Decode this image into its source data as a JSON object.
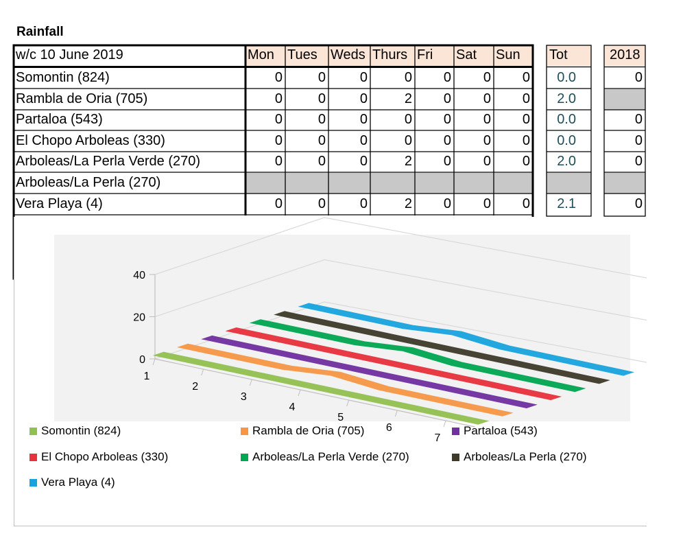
{
  "title": "Rainfall",
  "table": {
    "week_label": "w/c 10 June 2019",
    "day_headers": [
      "Mon",
      "Tues",
      "Weds",
      "Thurs",
      "Fri",
      "Sat",
      "Sun"
    ],
    "tot_header": "Tot",
    "prev_header": "2018",
    "rows": [
      {
        "station": "Somontin (824)",
        "days": [
          "0",
          "0",
          "0",
          "0",
          "0",
          "0",
          "0"
        ],
        "tot": "0.0",
        "prev": "0"
      },
      {
        "station": "Rambla de Oria (705)",
        "days": [
          "0",
          "0",
          "0",
          "2",
          "0",
          "0",
          "0"
        ],
        "tot": "2.0",
        "prev": ""
      },
      {
        "station": "Partaloa (543)",
        "days": [
          "0",
          "0",
          "0",
          "0",
          "0",
          "0",
          "0"
        ],
        "tot": "0.0",
        "prev": "0"
      },
      {
        "station": "El Chopo Arboleas (330)",
        "days": [
          "0",
          "0",
          "0",
          "0",
          "0",
          "0",
          "0"
        ],
        "tot": "0.0",
        "prev": "0"
      },
      {
        "station": "Arboleas/La Perla Verde (270)",
        "days": [
          "0",
          "0",
          "0",
          "2",
          "0",
          "0",
          "0"
        ],
        "tot": "2.0",
        "prev": "0"
      },
      {
        "station": "Arboleas/La Perla (270)",
        "days": [
          "",
          "",
          "",
          "",
          "",
          "",
          ""
        ],
        "tot": "",
        "prev": ""
      },
      {
        "station": "Vera Playa (4)",
        "days": [
          "0",
          "0",
          "0",
          "2",
          "0",
          "0",
          "0"
        ],
        "tot": "2.1",
        "prev": "0"
      }
    ]
  },
  "chart_data": {
    "type": "area",
    "title": "",
    "xlabel": "",
    "ylabel": "",
    "x": [
      1,
      2,
      3,
      4,
      5,
      6,
      7
    ],
    "ylim": [
      0,
      40
    ],
    "yticks": [
      "0",
      "20",
      "40"
    ],
    "grid": true,
    "legend_position": "bottom",
    "series": [
      {
        "name": "Somontin (824)",
        "color": "#92c050",
        "values": [
          0,
          0,
          0,
          0,
          0,
          0,
          0
        ]
      },
      {
        "name": "Rambla de Oria (705)",
        "color": "#f79646",
        "values": [
          0,
          0,
          0,
          2,
          0,
          0,
          0
        ]
      },
      {
        "name": "Partaloa (543)",
        "color": "#7030a0",
        "values": [
          0,
          0,
          0,
          0,
          0,
          0,
          0
        ]
      },
      {
        "name": "El Chopo Arboleas (330)",
        "color": "#e8313b",
        "values": [
          0,
          0,
          0,
          0,
          0,
          0,
          0
        ]
      },
      {
        "name": "Arboleas/La Perla Verde (270)",
        "color": "#00a651",
        "values": [
          0,
          0,
          0,
          2,
          0,
          0,
          0
        ]
      },
      {
        "name": "Arboleas/La Perla (270)",
        "color": "#3d3a2a",
        "values": [
          0,
          0,
          0,
          0,
          0,
          0,
          0
        ]
      },
      {
        "name": "Vera Playa (4)",
        "color": "#17a3dd",
        "values": [
          0,
          0,
          0,
          2,
          0,
          0,
          0
        ]
      }
    ]
  }
}
